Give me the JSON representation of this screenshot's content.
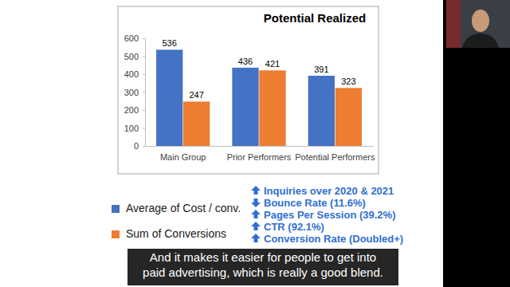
{
  "chart_data": {
    "type": "bar",
    "title": "Potential Realized",
    "categories": [
      "Main Group",
      "Prior Performers",
      "Potential Performers"
    ],
    "series": [
      {
        "name": "Average of Cost / conv.",
        "color": "#4472c4",
        "values": [
          536,
          436,
          391
        ]
      },
      {
        "name": "Sum of Conversions",
        "color": "#ed7d31",
        "values": [
          247,
          421,
          323
        ]
      }
    ],
    "ylim": [
      0,
      600
    ],
    "yticks": [
      0,
      100,
      200,
      300,
      400,
      500,
      600
    ],
    "data_labels": true,
    "legend": "bottom-left"
  },
  "bullets": [
    "Inquiries over 2020 & 2021",
    "Bounce Rate (11.6%)",
    "Pages Per Session (39.2%)",
    "CTR (92.1%)",
    "Conversion Rate (Doubled+)"
  ],
  "caption": [
    "And it makes it easier for people to get into",
    "paid advertising, which is really a good blend."
  ]
}
